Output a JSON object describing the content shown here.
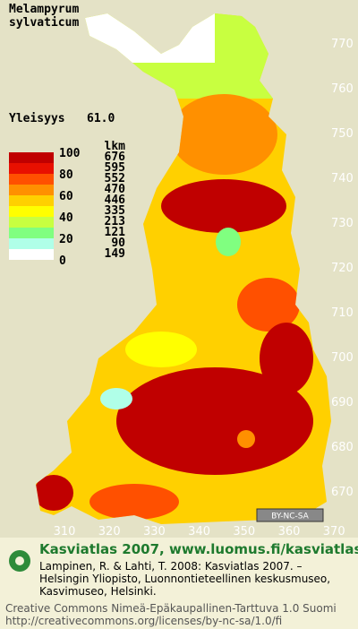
{
  "title": [
    "Melampyrum",
    "sylvaticum"
  ],
  "frequency": {
    "label": "Yleisyys",
    "value": "61.0"
  },
  "legend": {
    "scale_labels": [
      "100",
      "80",
      "60",
      "40",
      "20",
      "0"
    ],
    "count_header": "lkm",
    "counts": [
      "676",
      "595",
      "552",
      "470",
      "446",
      "335",
      "213",
      "121",
      "90",
      "149"
    ],
    "colors": [
      "#c00000",
      "#e81000",
      "#ff5000",
      "#ff9000",
      "#ffd000",
      "#ffff00",
      "#c8ff40",
      "#80ff80",
      "#b0ffe8",
      "#ffffff"
    ]
  },
  "grid": {
    "northing": [
      "770",
      "760",
      "750",
      "740",
      "730",
      "720",
      "710",
      "700",
      "690",
      "680",
      "670"
    ],
    "easting": [
      "310",
      "320",
      "330",
      "340",
      "350",
      "360",
      "370"
    ]
  },
  "license_badge": "BY-NC-SA",
  "footer": {
    "heading": "Kasviatlas 2007, www.luomus.fi/kasviatlas",
    "citation": [
      "Lampinen, R. & Lahti, T. 2008: Kasviatlas 2007. –",
      "Helsingin Yliopisto, Luonnontieteellinen keskusmuseo,",
      "Kasvimuseo, Helsinki."
    ],
    "license": [
      "Creative Commons Nimeä-Epäkaupallinen-Tarttuva 1.0 Suomi",
      "http://creativecommons.org/licenses/by-nc-sa/1.0/fi"
    ]
  }
}
